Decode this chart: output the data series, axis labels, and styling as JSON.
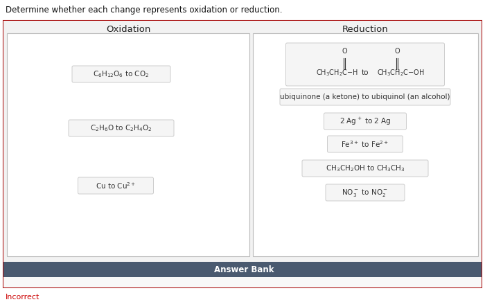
{
  "title": "Determine whether each change represents oxidation or reduction.",
  "incorrect_label": "Incorrect",
  "oxidation_title": "Oxidation",
  "reduction_title": "Reduction",
  "answer_bank_title": "Answer Bank",
  "oxidation_items": [
    "C$_6$H$_{12}$O$_6$ to CO$_2$",
    "C$_2$H$_6$O to C$_2$H$_4$O$_2$",
    "Cu to Cu$^{2+}$"
  ],
  "outer_border_color": "#aa1111",
  "answer_bank_bg": "#4a5a70",
  "answer_bank_fg": "#ffffff",
  "title_color": "#111111",
  "text_color": "#333333",
  "incorrect_color": "#cc0000",
  "item_box_bg": "#f5f5f5",
  "item_box_edge": "#cccccc",
  "column_box_bg": "#ffffff",
  "column_box_edge": "#bbbbbb",
  "outer_bg": "#f0f0f0",
  "answer_area_bg": "#f0f0f0"
}
